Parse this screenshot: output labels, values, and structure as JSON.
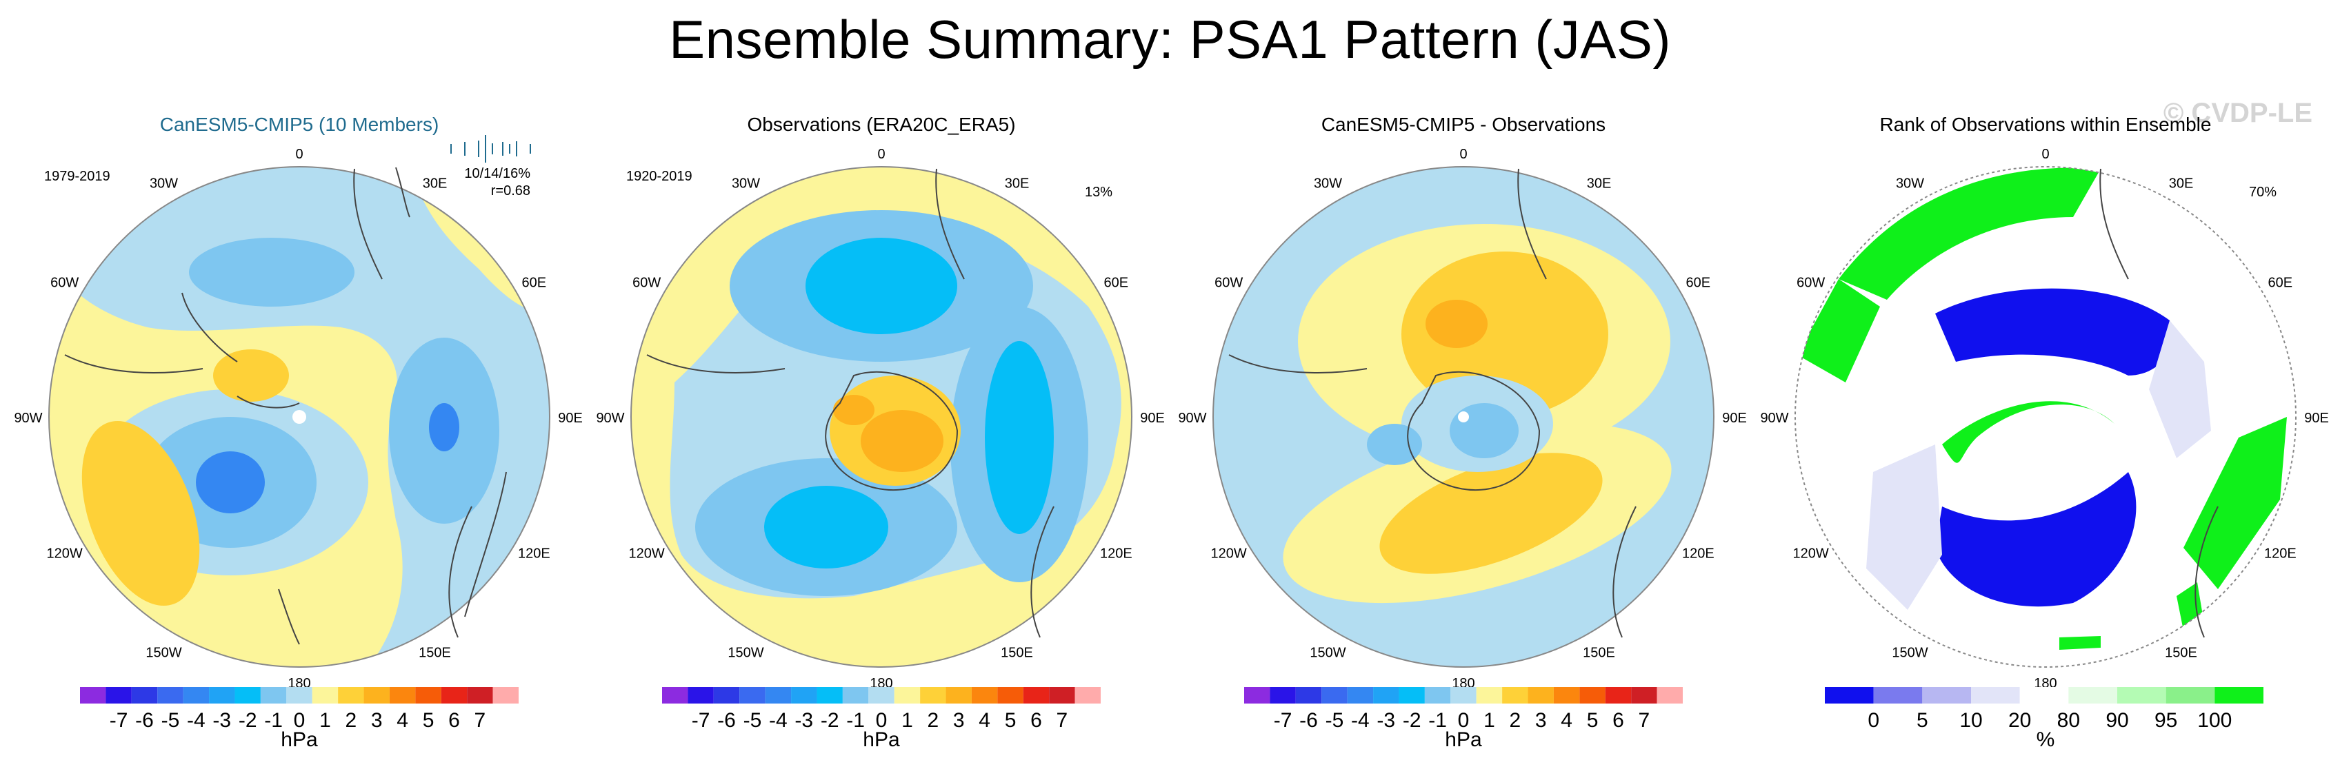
{
  "title": "Ensemble Summary: PSA1 Pattern (JAS)",
  "watermark": "© CVDP-LE",
  "colors": {
    "land_outline": "#444444",
    "sig_blue": "#1010ee",
    "sig_green": "#0ff01a"
  },
  "lon_labels": [
    "0",
    "30E",
    "60E",
    "90E",
    "120E",
    "150E",
    "180",
    "150W",
    "120W",
    "90W",
    "60W",
    "30W"
  ],
  "panels": [
    {
      "title": "CanESM5-CMIP5 (10 Members)",
      "title_color": "#1f6b8e",
      "period": "1979-2019",
      "corner_stats": "10/14/16%",
      "corner_r": "r=0.68",
      "has_rug": true
    },
    {
      "title": "Observations (ERA20C_ERA5)",
      "title_color": "#000000",
      "period": "1920-2019",
      "corner_stats": "13%"
    },
    {
      "title": "CanESM5-CMIP5 - Observations",
      "title_color": "#000000"
    },
    {
      "title": "Rank of Observations within Ensemble",
      "title_color": "#000000",
      "corner_stats": "70%"
    }
  ],
  "hpa_colorbar": {
    "unit": "hPa",
    "tick_labels": [
      "-7",
      "-6",
      "-5",
      "-4",
      "-3",
      "-2",
      "-1",
      "0",
      "1",
      "2",
      "3",
      "4",
      "5",
      "6",
      "7"
    ],
    "colors": [
      "#8c2be0",
      "#2a14e8",
      "#2d39e6",
      "#3a6af0",
      "#3487f2",
      "#20a3f5",
      "#05bef7",
      "#7ec6f0",
      "#b3ddf1",
      "#fcf59a",
      "#fed138",
      "#fdb21e",
      "#fb860e",
      "#f65c08",
      "#e82418",
      "#cf1f25",
      "#ffabab"
    ]
  },
  "rank_colorbar": {
    "unit": "%",
    "tick_labels": [
      "0",
      "5",
      "10",
      "20",
      "80",
      "90",
      "95",
      "100"
    ],
    "colors": [
      "#1010ee",
      "#7a7aee",
      "#b7b7f2",
      "#e2e4f8",
      "#ffffff",
      "#e4fbe4",
      "#b4fbb4",
      "#8af08a",
      "#0ff01a"
    ]
  }
}
